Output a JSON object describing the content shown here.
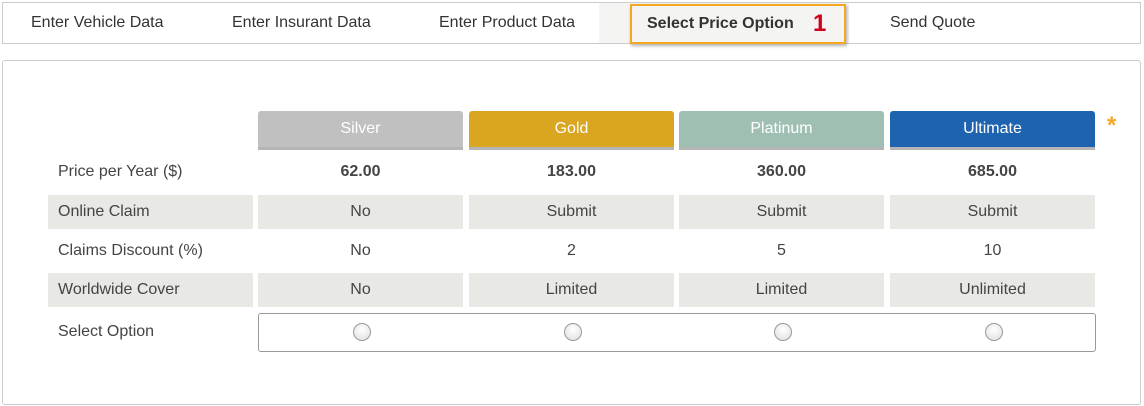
{
  "nav": {
    "tabs": [
      {
        "label": "Enter Vehicle Data"
      },
      {
        "label": "Enter Insurant Data"
      },
      {
        "label": "Enter Product Data"
      },
      {
        "label": "Select Price Option",
        "count": "1",
        "active": true
      },
      {
        "label": "Send Quote"
      }
    ]
  },
  "plans": [
    {
      "name": "Silver",
      "color": "#c0c0c0",
      "price": "62.00",
      "online_claim": "No",
      "discount": "No",
      "worldwide": "No"
    },
    {
      "name": "Gold",
      "color": "#daa520",
      "price": "183.00",
      "online_claim": "Submit",
      "discount": "2",
      "worldwide": "Limited"
    },
    {
      "name": "Platinum",
      "color": "#9fbfb3",
      "price": "360.00",
      "online_claim": "Submit",
      "discount": "5",
      "worldwide": "Limited"
    },
    {
      "name": "Ultimate",
      "color": "#1e63b0",
      "price": "685.00",
      "online_claim": "Submit",
      "discount": "10",
      "worldwide": "Unlimited"
    }
  ],
  "rows": {
    "price": "Price per Year ($)",
    "online_claim": "Online Claim",
    "discount": "Claims Discount (%)",
    "worldwide": "Worldwide Cover",
    "select": "Select Option"
  },
  "required_icon": "asterisk-icon",
  "required_symbol": "*"
}
